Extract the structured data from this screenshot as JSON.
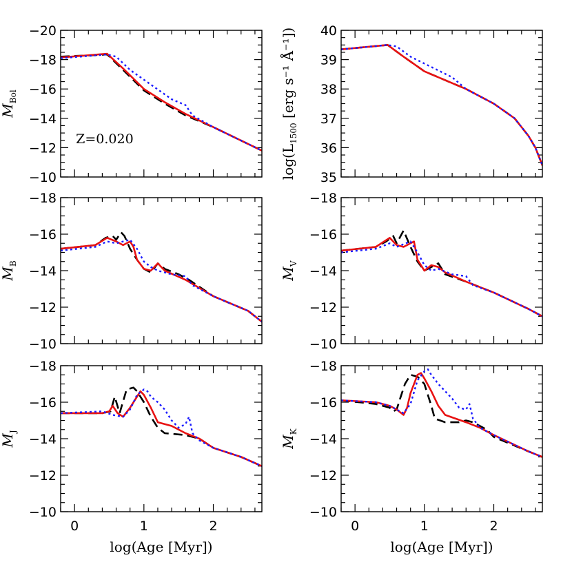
{
  "figure": {
    "xlabel": "log(Age [Myr])",
    "annotation": "Z=0.020",
    "colors": {
      "black": "#000000",
      "red": "#e81212",
      "blue": "#1b1bff"
    },
    "series_styles": [
      {
        "name": "black-dashed",
        "color": "#000000",
        "dash": "dashed"
      },
      {
        "name": "red-solid",
        "color": "#e81212",
        "dash": "solid"
      },
      {
        "name": "blue-dotted",
        "color": "#1b1bff",
        "dash": "dotted"
      }
    ]
  },
  "chart_data": [
    {
      "id": "mbol",
      "type": "line",
      "ylabel": "M",
      "ylabel_sub": "Bol",
      "xlim": [
        -0.2,
        2.7
      ],
      "ylim": [
        -10,
        -20
      ],
      "xticks": [
        0,
        1,
        2
      ],
      "yticks": [
        -10,
        -12,
        -14,
        -16,
        -18,
        -20
      ],
      "annotation": "Z=0.020",
      "series": [
        {
          "name": "black-dashed",
          "x": [
            -0.2,
            0.47,
            0.7,
            1.0,
            1.3,
            1.6,
            2.0,
            2.7
          ],
          "y": [
            -18.2,
            -18.35,
            -17.3,
            -15.9,
            -15.0,
            -14.2,
            -13.4,
            -11.8
          ]
        },
        {
          "name": "red-solid",
          "x": [
            -0.2,
            0.47,
            0.7,
            1.0,
            1.3,
            1.6,
            2.0,
            2.7
          ],
          "y": [
            -18.15,
            -18.4,
            -17.4,
            -16.0,
            -15.1,
            -14.3,
            -13.4,
            -11.8
          ]
        },
        {
          "name": "blue-dotted",
          "x": [
            -0.2,
            0.47,
            0.6,
            0.8,
            1.1,
            1.4,
            1.6,
            1.7,
            2.0,
            2.7
          ],
          "y": [
            -18.1,
            -18.35,
            -18.2,
            -17.3,
            -16.3,
            -15.3,
            -14.9,
            -14.2,
            -13.4,
            -11.8
          ]
        }
      ]
    },
    {
      "id": "l1500",
      "type": "line",
      "ylabel": "log(L",
      "ylabel_sub": "1500",
      "ylabel_tail": " [erg s⁻¹ Å⁻¹])",
      "xlim": [
        -0.2,
        2.7
      ],
      "ylim": [
        35,
        40
      ],
      "xticks": [
        0,
        1,
        2
      ],
      "yticks": [
        35,
        36,
        37,
        38,
        39,
        40
      ],
      "series": [
        {
          "name": "black-dashed",
          "x": [
            -0.2,
            0.47,
            0.7,
            1.0,
            1.3,
            1.6,
            2.0,
            2.3,
            2.5,
            2.6,
            2.7
          ],
          "y": [
            39.35,
            39.5,
            39.1,
            38.6,
            38.3,
            38.0,
            37.5,
            37.0,
            36.4,
            36.0,
            35.4
          ]
        },
        {
          "name": "red-solid",
          "x": [
            -0.2,
            0.47,
            0.7,
            1.0,
            1.3,
            1.6,
            2.0,
            2.3,
            2.5,
            2.6,
            2.7
          ],
          "y": [
            39.35,
            39.5,
            39.1,
            38.6,
            38.3,
            38.0,
            37.5,
            37.0,
            36.4,
            36.0,
            35.4
          ]
        },
        {
          "name": "blue-dotted",
          "x": [
            -0.2,
            0.47,
            0.6,
            0.8,
            1.1,
            1.4,
            1.6,
            2.0,
            2.3,
            2.5,
            2.6,
            2.7
          ],
          "y": [
            39.35,
            39.5,
            39.45,
            39.1,
            38.75,
            38.4,
            38.0,
            37.5,
            37.0,
            36.4,
            36.0,
            35.4
          ]
        }
      ]
    },
    {
      "id": "mb",
      "type": "line",
      "ylabel": "M",
      "ylabel_sub": "B",
      "xlim": [
        -0.2,
        2.7
      ],
      "ylim": [
        -10,
        -18
      ],
      "xticks": [
        0,
        1,
        2
      ],
      "yticks": [
        -10,
        -12,
        -14,
        -16,
        -18
      ],
      "series": [
        {
          "name": "black-dashed",
          "x": [
            -0.2,
            0.3,
            0.45,
            0.55,
            0.6,
            0.67,
            0.72,
            0.8,
            0.9,
            1.0,
            1.1,
            1.2,
            1.3,
            1.5,
            1.65,
            2.0,
            2.5,
            2.7
          ],
          "y": [
            -15.2,
            -15.4,
            -15.8,
            -15.9,
            -15.7,
            -16.1,
            -15.9,
            -15.2,
            -14.6,
            -14.1,
            -13.9,
            -14.4,
            -14.1,
            -13.8,
            -13.5,
            -12.6,
            -11.8,
            -11.2
          ]
        },
        {
          "name": "red-solid",
          "x": [
            -0.2,
            0.3,
            0.47,
            0.6,
            0.7,
            0.8,
            0.85,
            0.9,
            1.0,
            1.1,
            1.2,
            1.3,
            1.6,
            2.0,
            2.5,
            2.7
          ],
          "y": [
            -15.2,
            -15.4,
            -15.8,
            -15.6,
            -15.4,
            -15.6,
            -15.3,
            -14.6,
            -14.1,
            -14.0,
            -14.4,
            -14.0,
            -13.5,
            -12.6,
            -11.8,
            -11.2
          ]
        },
        {
          "name": "blue-dotted",
          "x": [
            -0.2,
            0.3,
            0.47,
            0.6,
            0.8,
            0.9,
            1.0,
            1.1,
            1.2,
            1.4,
            1.6,
            1.7,
            2.0,
            2.5,
            2.7
          ],
          "y": [
            -15.1,
            -15.3,
            -15.6,
            -15.5,
            -15.7,
            -15.2,
            -14.5,
            -14.2,
            -14.0,
            -13.8,
            -13.7,
            -13.2,
            -12.6,
            -11.8,
            -11.2
          ]
        }
      ]
    },
    {
      "id": "mv",
      "type": "line",
      "ylabel": "M",
      "ylabel_sub": "V",
      "xlim": [
        -0.2,
        2.7
      ],
      "ylim": [
        -10,
        -18
      ],
      "xticks": [
        0,
        1,
        2
      ],
      "yticks": [
        -10,
        -12,
        -14,
        -16,
        -18
      ],
      "series": [
        {
          "name": "black-dashed",
          "x": [
            -0.2,
            0.3,
            0.45,
            0.55,
            0.6,
            0.7,
            0.8,
            0.9,
            1.0,
            1.1,
            1.2,
            1.3,
            1.6,
            2.0,
            2.5,
            2.7
          ],
          "y": [
            -15.1,
            -15.3,
            -15.6,
            -15.9,
            -15.5,
            -16.2,
            -15.3,
            -14.5,
            -14.0,
            -14.2,
            -14.4,
            -13.8,
            -13.4,
            -12.8,
            -11.9,
            -11.5
          ]
        },
        {
          "name": "red-solid",
          "x": [
            -0.2,
            0.3,
            0.5,
            0.6,
            0.7,
            0.85,
            0.9,
            1.0,
            1.1,
            1.2,
            1.3,
            1.6,
            2.0,
            2.5,
            2.7
          ],
          "y": [
            -15.1,
            -15.3,
            -15.8,
            -15.4,
            -15.3,
            -15.6,
            -14.6,
            -14.0,
            -14.3,
            -14.2,
            -13.9,
            -13.4,
            -12.8,
            -11.9,
            -11.5
          ]
        },
        {
          "name": "blue-dotted",
          "x": [
            -0.2,
            0.3,
            0.5,
            0.6,
            0.8,
            0.9,
            1.0,
            1.1,
            1.2,
            1.4,
            1.6,
            1.7,
            2.0,
            2.5,
            2.7
          ],
          "y": [
            -15.0,
            -15.2,
            -15.5,
            -15.3,
            -15.6,
            -15.0,
            -14.3,
            -14.0,
            -14.1,
            -13.8,
            -13.7,
            -13.2,
            -12.8,
            -11.9,
            -11.5
          ]
        }
      ]
    },
    {
      "id": "mj",
      "type": "line",
      "ylabel": "M",
      "ylabel_sub": "J",
      "xlim": [
        -0.2,
        2.7
      ],
      "ylim": [
        -10,
        -18
      ],
      "xticks": [
        0,
        1,
        2
      ],
      "yticks": [
        -10,
        -12,
        -14,
        -16,
        -18
      ],
      "series": [
        {
          "name": "black-dashed",
          "x": [
            -0.2,
            0.4,
            0.52,
            0.58,
            0.65,
            0.75,
            0.85,
            0.9,
            1.0,
            1.1,
            1.2,
            1.3,
            1.6,
            1.8,
            2.0,
            2.4,
            2.7
          ],
          "y": [
            -15.4,
            -15.4,
            -15.5,
            -16.3,
            -15.4,
            -16.7,
            -16.8,
            -16.6,
            -16.0,
            -15.2,
            -14.6,
            -14.3,
            -14.2,
            -14.0,
            -13.5,
            -13.0,
            -12.5
          ]
        },
        {
          "name": "red-solid",
          "x": [
            -0.2,
            0.4,
            0.5,
            0.55,
            0.62,
            0.7,
            0.8,
            0.9,
            0.95,
            1.0,
            1.1,
            1.2,
            1.4,
            1.6,
            1.8,
            2.0,
            2.4,
            2.7
          ],
          "y": [
            -15.4,
            -15.4,
            -15.5,
            -15.8,
            -15.4,
            -15.2,
            -15.7,
            -16.3,
            -16.6,
            -16.4,
            -15.7,
            -14.9,
            -14.7,
            -14.3,
            -14.0,
            -13.5,
            -13.0,
            -12.5
          ]
        },
        {
          "name": "blue-dotted",
          "x": [
            -0.2,
            0.4,
            0.55,
            0.7,
            0.8,
            0.9,
            1.0,
            1.05,
            1.1,
            1.2,
            1.3,
            1.4,
            1.5,
            1.6,
            1.65,
            1.7,
            1.8,
            2.0,
            2.4,
            2.7
          ],
          "y": [
            -15.4,
            -15.5,
            -15.3,
            -15.2,
            -15.6,
            -16.4,
            -16.7,
            -16.6,
            -16.3,
            -16.0,
            -15.6,
            -15.0,
            -14.6,
            -14.8,
            -15.2,
            -14.3,
            -13.9,
            -13.5,
            -13.0,
            -12.5
          ]
        }
      ]
    },
    {
      "id": "mk",
      "type": "line",
      "ylabel": "M",
      "ylabel_sub": "K",
      "xlim": [
        -0.2,
        2.7
      ],
      "ylim": [
        -10,
        -18
      ],
      "xticks": [
        0,
        1,
        2
      ],
      "yticks": [
        -10,
        -12,
        -14,
        -16,
        -18
      ],
      "series": [
        {
          "name": "black-dashed",
          "x": [
            -0.2,
            0.3,
            0.5,
            0.55,
            0.6,
            0.65,
            0.72,
            0.8,
            0.9,
            1.0,
            1.1,
            1.15,
            1.3,
            1.5,
            1.6,
            1.7,
            1.9,
            2.0,
            2.5,
            2.7
          ],
          "y": [
            -16.1,
            -15.9,
            -15.7,
            -15.5,
            -15.6,
            -16.2,
            -17.0,
            -17.5,
            -17.4,
            -17.0,
            -15.8,
            -15.1,
            -14.9,
            -14.9,
            -15.0,
            -14.9,
            -14.5,
            -14.1,
            -13.3,
            -13.0
          ]
        },
        {
          "name": "red-solid",
          "x": [
            -0.2,
            0.3,
            0.5,
            0.6,
            0.7,
            0.75,
            0.8,
            0.9,
            0.95,
            1.0,
            1.1,
            1.2,
            1.3,
            1.6,
            1.8,
            2.0,
            2.5,
            2.7
          ],
          "y": [
            -16.1,
            -16.0,
            -15.8,
            -15.6,
            -15.3,
            -15.7,
            -16.5,
            -17.5,
            -17.6,
            -17.3,
            -16.6,
            -15.8,
            -15.3,
            -14.9,
            -14.6,
            -14.2,
            -13.3,
            -13.0
          ]
        },
        {
          "name": "blue-dotted",
          "x": [
            -0.2,
            0.3,
            0.5,
            0.6,
            0.7,
            0.8,
            0.9,
            1.0,
            1.05,
            1.1,
            1.2,
            1.3,
            1.4,
            1.5,
            1.6,
            1.65,
            1.7,
            1.8,
            2.0,
            2.5,
            2.7
          ],
          "y": [
            -16.1,
            -16.0,
            -15.8,
            -15.6,
            -15.4,
            -15.9,
            -17.2,
            -17.7,
            -17.8,
            -17.5,
            -17.0,
            -16.6,
            -16.2,
            -15.7,
            -15.6,
            -15.9,
            -15.1,
            -14.6,
            -14.2,
            -13.3,
            -13.0
          ]
        }
      ]
    }
  ]
}
